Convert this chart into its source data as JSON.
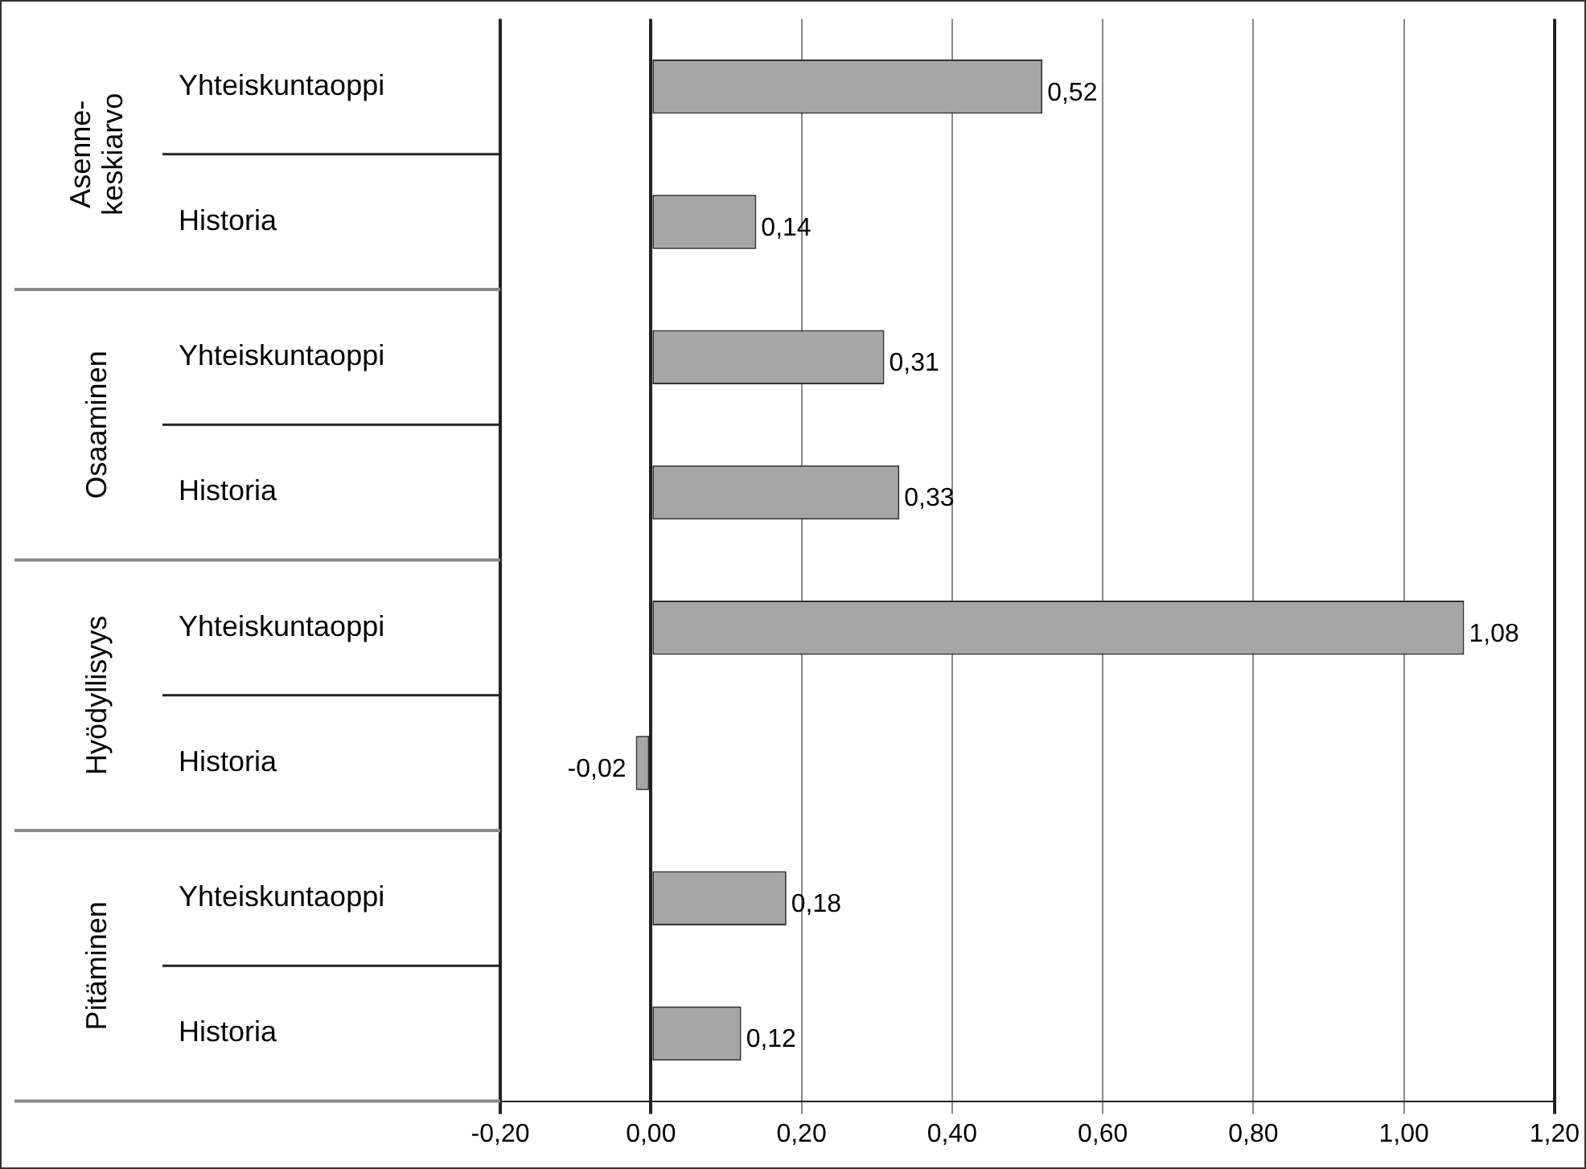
{
  "chart_data": {
    "type": "bar",
    "orientation": "horizontal",
    "categories": [
      "Yhteiskuntaoppi",
      "Historia",
      "Yhteiskuntaoppi",
      "Historia",
      "Yhteiskuntaoppi",
      "Historia",
      "Yhteiskuntaoppi",
      "Historia"
    ],
    "values": [
      0.52,
      0.14,
      0.31,
      0.33,
      1.08,
      -0.02,
      0.18,
      0.12
    ],
    "value_labels": [
      "0,52",
      "0,14",
      "0,31",
      "0,33",
      "1,08",
      "-0,02",
      "0,18",
      "0,12"
    ],
    "color": "#a6a6a6",
    "xlim": [
      -0.2,
      1.2
    ],
    "xticks": [
      {
        "value": -0.2,
        "label": "-0,20"
      },
      {
        "value": 0,
        "label": "0,00"
      },
      {
        "value": 0.2,
        "label": "0,20"
      },
      {
        "value": 0.4,
        "label": "0,40"
      },
      {
        "value": 0.6,
        "label": "0,60"
      },
      {
        "value": 0.8,
        "label": "0,80"
      },
      {
        "value": 1.0,
        "label": "1,00"
      },
      {
        "value": 1.2,
        "label": "1,20"
      }
    ],
    "grid": "x",
    "legend": false,
    "annotations": [
      "Asenne-\nkeskiarvo",
      "Osaaminen",
      "Hyödyllisyys",
      "Pitäminen"
    ]
  }
}
